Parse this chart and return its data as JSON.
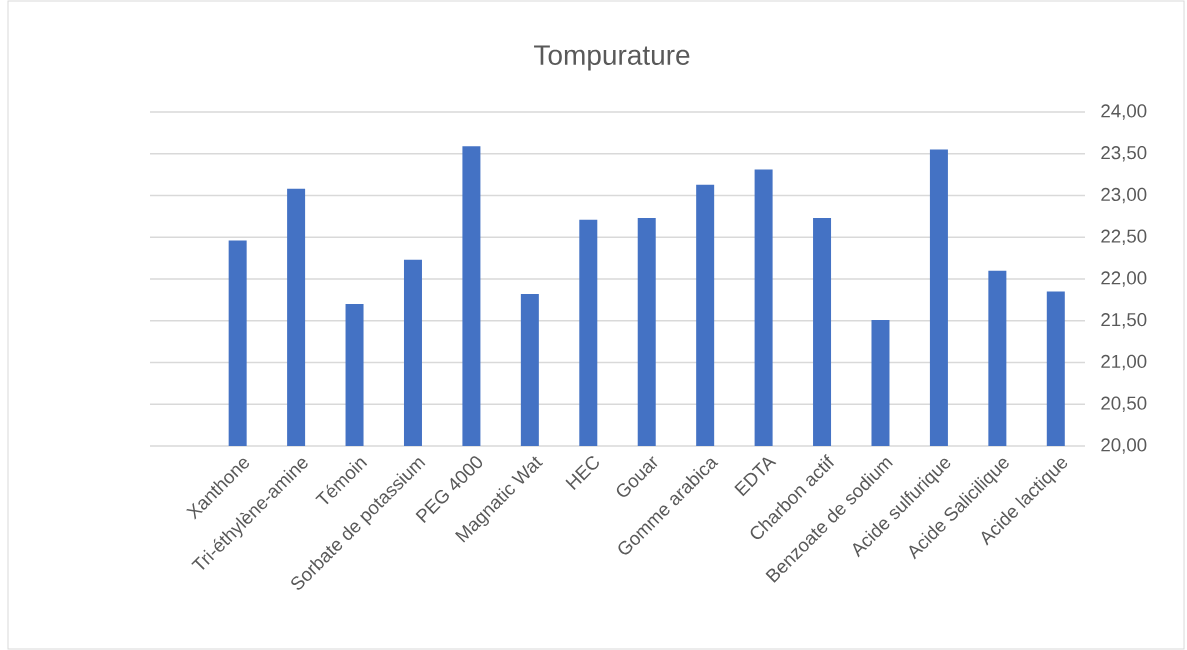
{
  "chart_data": {
    "type": "bar",
    "title": "Tompurature",
    "categories": [
      null,
      "Xanthone",
      "Tri-éthylène-amine",
      "Témoin",
      "Sorbate de potassium",
      "PEG 4000",
      "Magnatic Wat",
      "HEC",
      "Gouar",
      "Gomme arabica",
      "EDTA",
      "Charbon actif",
      "Benzoate de sodium",
      "Acide sulfurique",
      "Acide Salicilique",
      "Acide lactique"
    ],
    "values": [
      null,
      22.46,
      23.08,
      21.7,
      22.23,
      23.59,
      21.82,
      22.71,
      22.73,
      23.13,
      23.31,
      22.73,
      21.51,
      23.55,
      22.1,
      21.85
    ],
    "color": "#4472c4",
    "ylim": [
      20,
      24
    ],
    "yticks": [
      {
        "value": 20,
        "label": "20,00"
      },
      {
        "value": 20.5,
        "label": "20,50"
      },
      {
        "value": 21,
        "label": "21,00"
      },
      {
        "value": 21.5,
        "label": "21,50"
      },
      {
        "value": 22,
        "label": "22,00"
      },
      {
        "value": 22.5,
        "label": "22,50"
      },
      {
        "value": 23,
        "label": "23,00"
      },
      {
        "value": 23.5,
        "label": "23,50"
      },
      {
        "value": 24,
        "label": "24,00"
      }
    ],
    "grid": "y"
  }
}
